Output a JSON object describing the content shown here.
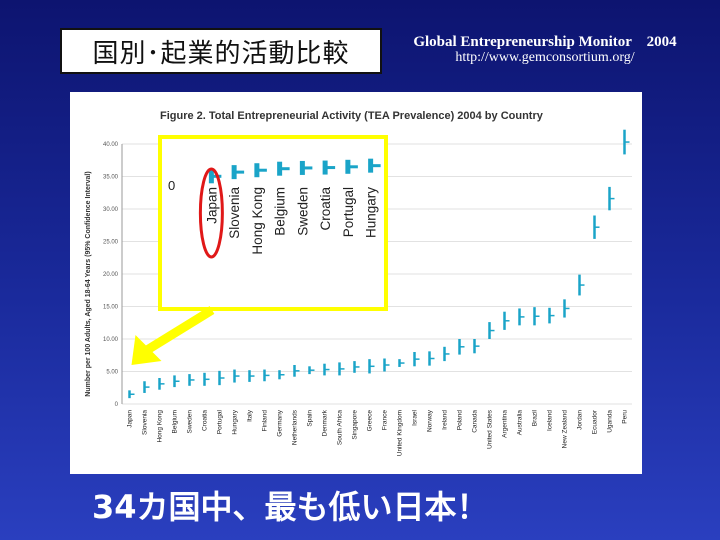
{
  "slide": {
    "title": "国別･起業的活動比較",
    "source_title": "Global Entrepreneurship Monitor　2004",
    "source_url": "http://www.gemconsortium.org/",
    "caption": "34カ国中、最も低い日本！"
  },
  "colors": {
    "mark": "#1aa4c8",
    "highlight": "#ffff00",
    "arrow": "#ffff00",
    "circle": "#e01818"
  },
  "chart_data": {
    "type": "error-bar",
    "title": "Figure 2. Total Entrepreneurial Activity (TEA Prevalence) 2004 by Country",
    "ylabel": "Number per 100 Adults, Aged 18-64 Years (95% Confidence Interval)",
    "ylim": [
      0,
      40
    ],
    "yticks": [
      "0",
      "5.00",
      "10.00",
      "15.00",
      "20.00",
      "25.00",
      "30.00",
      "35.00",
      "40.00"
    ],
    "grid": true,
    "categories": [
      "Japan",
      "Slovenia",
      "Hong Kong",
      "Belgium",
      "Sweden",
      "Croatia",
      "Portugal",
      "Hungary",
      "Italy",
      "Finland",
      "Germany",
      "Netherlands",
      "Spain",
      "Denmark",
      "South Africa",
      "Singapore",
      "Greece",
      "France",
      "United Kingdom",
      "Israel",
      "Norway",
      "Ireland",
      "Poland",
      "Canada",
      "United States",
      "Argentina",
      "Australia",
      "Brazil",
      "Iceland",
      "New Zealand",
      "Jordan",
      "Ecuador",
      "Uganda",
      "Peru"
    ],
    "values": [
      1.5,
      2.6,
      3.1,
      3.5,
      3.7,
      3.8,
      4.0,
      4.3,
      4.3,
      4.4,
      4.5,
      5.1,
      5.2,
      5.3,
      5.4,
      5.7,
      5.8,
      6.0,
      6.3,
      6.9,
      7.0,
      7.7,
      8.8,
      8.9,
      11.3,
      12.8,
      13.4,
      13.5,
      13.6,
      14.7,
      18.3,
      27.2,
      31.6,
      40.3
    ],
    "error": [
      0.6,
      0.9,
      0.9,
      0.9,
      0.9,
      1.0,
      1.1,
      1.0,
      0.9,
      0.9,
      0.7,
      0.9,
      0.6,
      0.9,
      1.0,
      0.9,
      1.1,
      1.0,
      0.6,
      1.1,
      1.1,
      1.1,
      1.2,
      1.1,
      1.3,
      1.4,
      1.3,
      1.4,
      1.2,
      1.4,
      1.6,
      1.8,
      1.8,
      1.9
    ]
  },
  "inset": {
    "zero_label": "0",
    "categories": [
      "Japan",
      "Slovenia",
      "Hong Kong",
      "Belgium",
      "Sweden",
      "Croatia",
      "Portugal",
      "Hungary"
    ]
  }
}
